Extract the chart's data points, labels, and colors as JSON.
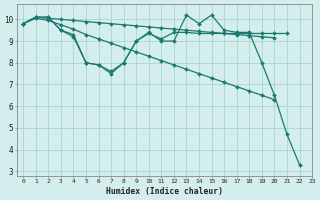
{
  "title": "",
  "xlabel": "Humidex (Indice chaleur)",
  "xlim": [
    -0.5,
    23
  ],
  "ylim": [
    2.8,
    10.7
  ],
  "yticks": [
    3,
    4,
    5,
    6,
    7,
    8,
    9,
    10
  ],
  "xticks": [
    0,
    1,
    2,
    3,
    4,
    5,
    6,
    7,
    8,
    9,
    10,
    11,
    12,
    13,
    14,
    15,
    16,
    17,
    18,
    19,
    20,
    21,
    22,
    23
  ],
  "bg_color": "#d4eeee",
  "grid_color": "#aad4d4",
  "line_color": "#1a7a6e",
  "lines": [
    {
      "x": [
        0,
        1,
        2,
        3,
        4,
        5,
        6,
        7,
        8,
        9,
        10,
        11,
        12,
        13,
        14,
        15,
        16,
        17,
        18,
        19,
        20,
        21,
        22
      ],
      "y": [
        9.8,
        10.1,
        10.1,
        9.5,
        9.3,
        8.0,
        7.9,
        7.5,
        8.0,
        9.0,
        9.4,
        9.0,
        9.0,
        10.2,
        9.8,
        10.2,
        9.5,
        9.4,
        9.4,
        8.0,
        6.5,
        4.7,
        3.3
      ]
    },
    {
      "x": [
        0,
        1,
        2,
        3,
        4,
        5,
        6,
        7,
        8,
        9,
        10,
        11,
        12,
        13,
        14,
        15,
        16,
        17,
        18,
        19,
        20,
        21
      ],
      "y": [
        9.8,
        10.1,
        10.1,
        9.5,
        9.2,
        8.0,
        7.9,
        7.6,
        8.0,
        9.0,
        9.35,
        9.1,
        9.4,
        9.4,
        9.35,
        9.35,
        9.35,
        9.35,
        9.35,
        9.35,
        9.35,
        9.35
      ]
    },
    {
      "x": [
        0,
        1,
        2,
        3,
        4,
        5,
        6,
        7,
        8,
        9,
        10,
        11,
        12,
        13,
        14,
        15,
        16,
        17,
        18,
        19,
        20
      ],
      "y": [
        9.8,
        10.05,
        9.95,
        9.75,
        9.55,
        9.3,
        9.1,
        8.9,
        8.7,
        8.5,
        8.3,
        8.1,
        7.9,
        7.7,
        7.5,
        7.3,
        7.1,
        6.9,
        6.7,
        6.5,
        6.3
      ]
    },
    {
      "x": [
        0,
        1,
        2,
        3,
        4,
        5,
        6,
        7,
        8,
        9,
        10,
        11,
        12,
        13,
        14,
        15,
        16,
        17,
        18,
        19,
        20
      ],
      "y": [
        9.8,
        10.1,
        10.05,
        10.0,
        9.95,
        9.9,
        9.85,
        9.8,
        9.75,
        9.7,
        9.65,
        9.6,
        9.55,
        9.5,
        9.45,
        9.4,
        9.35,
        9.3,
        9.25,
        9.2,
        9.15
      ]
    }
  ]
}
